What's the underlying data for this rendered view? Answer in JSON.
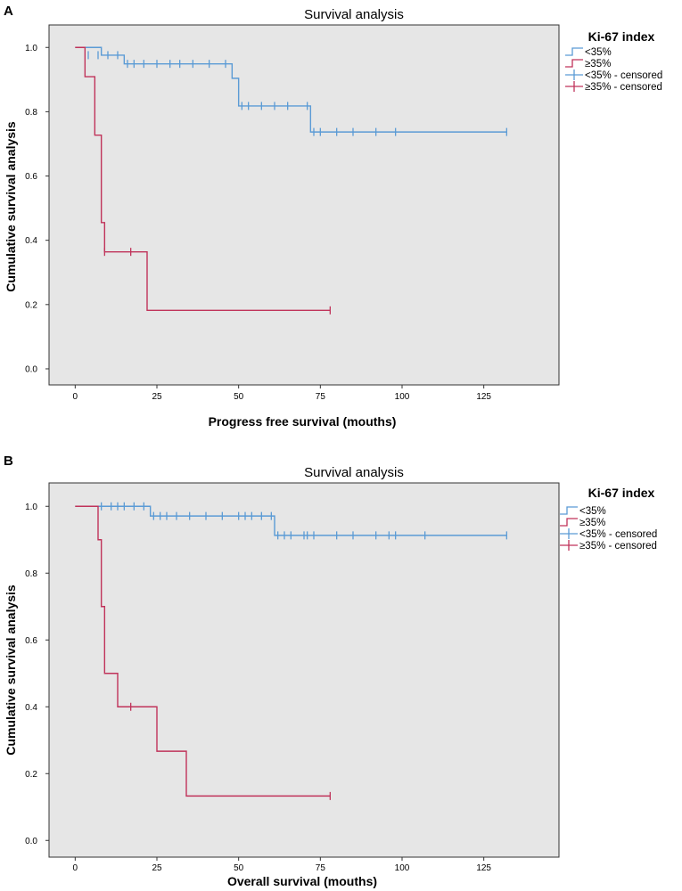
{
  "chart_data": [
    {
      "panel": "A",
      "type": "line",
      "title": "Survival analysis",
      "xlabel": "Progress free survival (mouths)",
      "ylabel": "Cumulative survival analysis",
      "xlim": [
        -8,
        148
      ],
      "ylim": [
        -0.05,
        1.07
      ],
      "xticks": [
        0,
        25,
        50,
        75,
        100,
        125
      ],
      "yticks": [
        0.0,
        0.2,
        0.4,
        0.6,
        0.8,
        1.0
      ],
      "legend_title": "Ki-67 index",
      "legend": [
        "<35%",
        "≥35%",
        "<35% - censored",
        "≥35% - censored"
      ],
      "series": [
        {
          "name": "<35%",
          "color": "#5b9bd5",
          "steps": [
            [
              0,
              1.0
            ],
            [
              8,
              0.976
            ],
            [
              15,
              0.949
            ],
            [
              48,
              0.904
            ],
            [
              50,
              0.818
            ],
            [
              72,
              0.737
            ]
          ],
          "end": 132,
          "censored": [
            [
              4,
              0.976
            ],
            [
              7,
              0.976
            ],
            [
              10,
              0.976
            ],
            [
              13,
              0.976
            ],
            [
              16,
              0.949
            ],
            [
              18,
              0.949
            ],
            [
              21,
              0.949
            ],
            [
              25,
              0.949
            ],
            [
              29,
              0.949
            ],
            [
              32,
              0.949
            ],
            [
              36,
              0.949
            ],
            [
              41,
              0.949
            ],
            [
              46,
              0.949
            ],
            [
              51,
              0.818
            ],
            [
              53,
              0.818
            ],
            [
              57,
              0.818
            ],
            [
              61,
              0.818
            ],
            [
              65,
              0.818
            ],
            [
              71,
              0.818
            ],
            [
              73,
              0.737
            ],
            [
              75,
              0.737
            ],
            [
              80,
              0.737
            ],
            [
              85,
              0.737
            ],
            [
              92,
              0.737
            ],
            [
              98,
              0.737
            ],
            [
              132,
              0.737
            ]
          ]
        },
        {
          "name": "≥35%",
          "color": "#c0335a",
          "steps": [
            [
              0,
              1.0
            ],
            [
              3,
              0.909
            ],
            [
              6,
              0.727
            ],
            [
              8,
              0.455
            ],
            [
              9,
              0.364
            ],
            [
              22,
              0.182
            ]
          ],
          "end": 78,
          "censored": [
            [
              9,
              0.364
            ],
            [
              17,
              0.364
            ],
            [
              78,
              0.182
            ]
          ]
        }
      ]
    },
    {
      "panel": "B",
      "type": "line",
      "title": "Survival analysis",
      "xlabel": "Overall survival (mouths)",
      "ylabel": "Cumulative survival analysis",
      "xlim": [
        -8,
        148
      ],
      "ylim": [
        -0.05,
        1.07
      ],
      "xticks": [
        0,
        25,
        50,
        75,
        100,
        125
      ],
      "yticks": [
        0.0,
        0.2,
        0.4,
        0.6,
        0.8,
        1.0
      ],
      "legend_title": "Ki-67 index",
      "legend": [
        "<35%",
        "≥35%",
        "<35% - censored",
        "≥35% - censored"
      ],
      "series": [
        {
          "name": "<35%",
          "color": "#5b9bd5",
          "steps": [
            [
              0,
              1.0
            ],
            [
              23,
              0.971
            ],
            [
              61,
              0.913
            ]
          ],
          "end": 132,
          "censored": [
            [
              8,
              1.0
            ],
            [
              11,
              1.0
            ],
            [
              13,
              1.0
            ],
            [
              15,
              1.0
            ],
            [
              18,
              1.0
            ],
            [
              21,
              1.0
            ],
            [
              24,
              0.971
            ],
            [
              26,
              0.971
            ],
            [
              28,
              0.971
            ],
            [
              31,
              0.971
            ],
            [
              35,
              0.971
            ],
            [
              40,
              0.971
            ],
            [
              45,
              0.971
            ],
            [
              50,
              0.971
            ],
            [
              52,
              0.971
            ],
            [
              54,
              0.971
            ],
            [
              57,
              0.971
            ],
            [
              60,
              0.971
            ],
            [
              62,
              0.913
            ],
            [
              64,
              0.913
            ],
            [
              66,
              0.913
            ],
            [
              70,
              0.913
            ],
            [
              71,
              0.913
            ],
            [
              73,
              0.913
            ],
            [
              80,
              0.913
            ],
            [
              85,
              0.913
            ],
            [
              92,
              0.913
            ],
            [
              96,
              0.913
            ],
            [
              98,
              0.913
            ],
            [
              107,
              0.913
            ],
            [
              132,
              0.913
            ]
          ]
        },
        {
          "name": "≥35%",
          "color": "#c0335a",
          "steps": [
            [
              0,
              1.0
            ],
            [
              7,
              0.9
            ],
            [
              8,
              0.7
            ],
            [
              9,
              0.5
            ],
            [
              13,
              0.4
            ],
            [
              25,
              0.267
            ],
            [
              34,
              0.133
            ]
          ],
          "end": 78,
          "censored": [
            [
              17,
              0.4
            ],
            [
              78,
              0.133
            ]
          ]
        }
      ]
    }
  ]
}
